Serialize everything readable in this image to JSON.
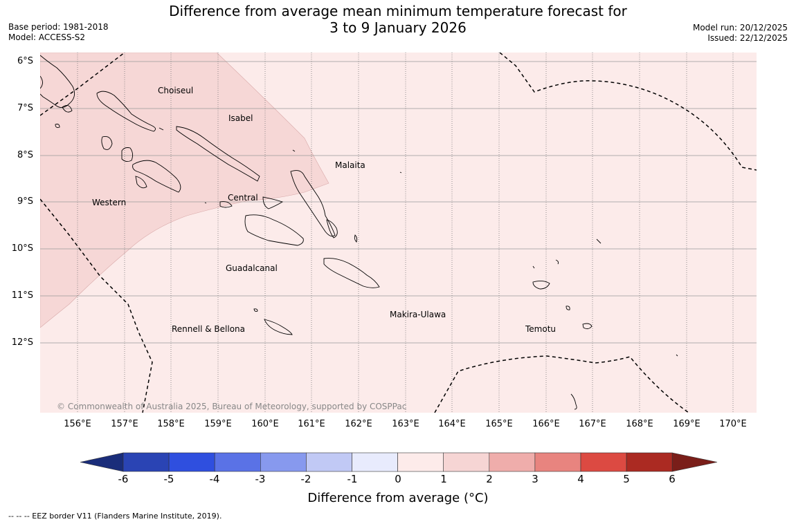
{
  "title_line1": "Difference from average mean minimum temperature forecast for",
  "title_line2": "3 to 9 January 2026",
  "meta_left": {
    "base_period": "Base period: 1981-2018",
    "model": "Model: ACCESS-S2"
  },
  "meta_right": {
    "model_run": "Model run: 20/12/2025",
    "issued": "Issued: 22/12/2025"
  },
  "map": {
    "latitudes": [
      "6°S",
      "7°S",
      "8°S",
      "9°S",
      "10°S",
      "11°S",
      "12°S"
    ],
    "longitudes": [
      "156°E",
      "157°E",
      "158°E",
      "159°E",
      "160°E",
      "161°E",
      "162°E",
      "163°E",
      "164°E",
      "165°E",
      "166°E",
      "167°E",
      "168°E",
      "169°E",
      "170°E"
    ],
    "regions": {
      "choiseul": "Choiseul",
      "isabel": "Isabel",
      "malaita": "Malaita",
      "western": "Western",
      "central": "Central",
      "guadalcanal": "Guadalcanal",
      "makira": "Makira-Ulawa",
      "temotu": "Temotu",
      "rennell": "Rennell & Bellona"
    },
    "copyright": "© Commonwealth of Australia 2025, Bureau of Meteorology, supported by COSPPac",
    "colors": {
      "anomaly_1_2": "#f6d7d6",
      "anomaly_0_1": "#fcebea",
      "grid": "#999999"
    }
  },
  "colorbar": {
    "ticks": [
      "-6",
      "-5",
      "-4",
      "-3",
      "-2",
      "-1",
      "0",
      "1",
      "2",
      "3",
      "4",
      "5",
      "6"
    ],
    "colors": [
      "#1a2d7a",
      "#2a44b4",
      "#2f4fdf",
      "#5a72e6",
      "#8799ee",
      "#c1c9f5",
      "#e8ebfd",
      "#fdebea",
      "#f6d5d4",
      "#efadab",
      "#e8847f",
      "#dc4a42",
      "#ab2a22",
      "#7a1e19"
    ],
    "label": "Difference from average (°C)"
  },
  "footer": "--  --  -- EEZ border V11 (Flanders Marine Institute, 2019)."
}
